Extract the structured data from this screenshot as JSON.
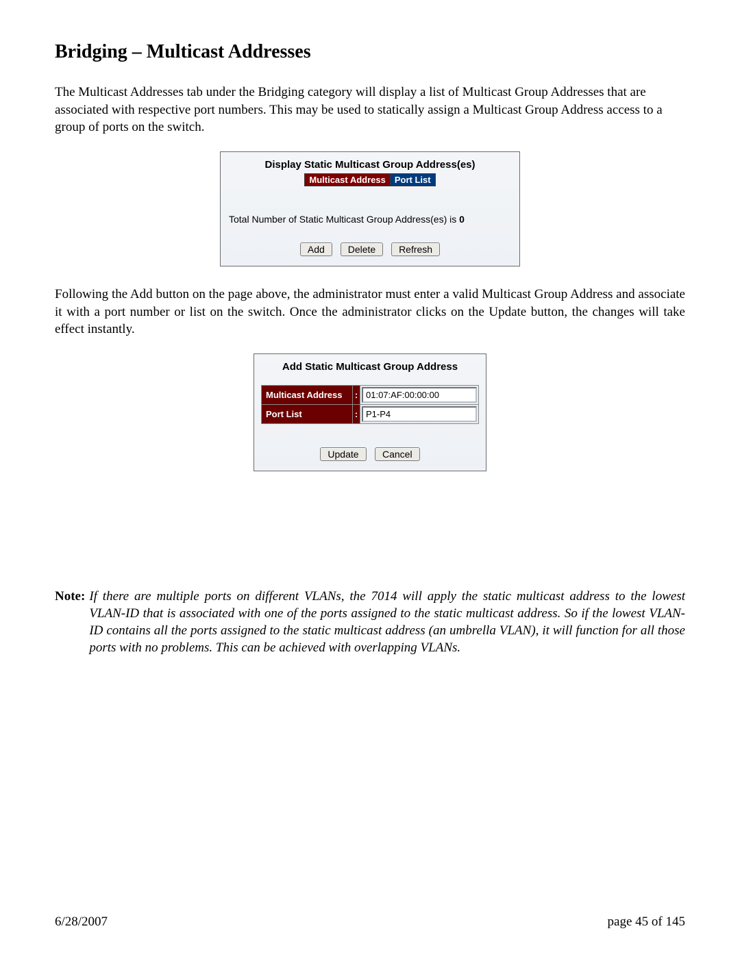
{
  "title": "Bridging – Multicast Addresses",
  "para1": "The Multicast Addresses tab under the Bridging category will display a list of Multicast Group Addresses that are associated with respective port numbers.  This may be used to statically assign a Multicast Group Address access to a group of ports on the switch.",
  "panel1": {
    "title": "Display Static Multicast Group Address(es)",
    "columns": {
      "a": "Multicast Address",
      "b": "Port List"
    },
    "count_prefix": "Total Number of Static Multicast Group Address(es) is ",
    "count_value": "0",
    "buttons": {
      "add": "Add",
      "delete": "Delete",
      "refresh": "Refresh"
    }
  },
  "para2": "Following the Add button on the page above, the administrator must enter a valid Multicast Group Address and associate it with a port number or list on the switch.  Once the administrator clicks on the Update button, the changes will take effect instantly.",
  "panel2": {
    "title": "Add Static Multicast Group Address",
    "row1": {
      "label": "Multicast Address",
      "value": "01:07:AF:00:00:00"
    },
    "row2": {
      "label": "Port List",
      "value": "P1-P4"
    },
    "buttons": {
      "update": "Update",
      "cancel": "Cancel"
    }
  },
  "note": {
    "label": "Note:",
    "body": "If there are multiple ports on different VLANs, the 7014 will apply the static multicast address to the lowest VLAN-ID that is associated with one of the ports assigned to the static multicast address.  So if the lowest VLAN-ID contains all the ports assigned to the static multicast address (an umbrella VLAN), it will function for all those ports with no problems.  This can be achieved with overlapping VLANs."
  },
  "footer": {
    "date": "6/28/2007",
    "page": "page 45 of 145"
  },
  "colors": {
    "header_red": "#7f0000",
    "header_blue": "#003b7f",
    "label_red": "#6b0000",
    "panel_bg_top": "#f3f5f8",
    "panel_bg_bottom": "#eef1f5",
    "border": "#6b6b6b"
  }
}
